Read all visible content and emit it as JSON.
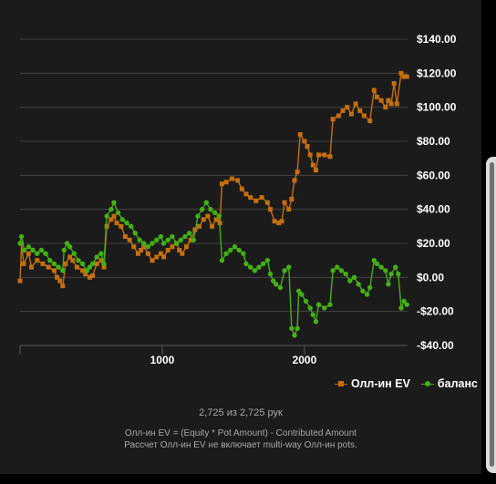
{
  "chart_data": {
    "type": "line",
    "xlim": [
      0,
      2725
    ],
    "ylim": [
      -40,
      140
    ],
    "x_ticks": [
      0,
      1000,
      2000
    ],
    "x_tick_labels": [
      "",
      "1000",
      "2000"
    ],
    "y_ticks": [
      -40,
      -20,
      0,
      20,
      40,
      60,
      80,
      100,
      120,
      140
    ],
    "y_tick_labels": [
      "-$40.00",
      "-$20.00",
      "$0.00",
      "$20.00",
      "$40.00",
      "$60.00",
      "$80.00",
      "$100.00",
      "$120.00",
      "$140.00"
    ],
    "y_axis_position": "right",
    "grid": true,
    "legend_position": "bottom-right",
    "series": [
      {
        "name": "Олл-ин EV",
        "color": "#c56f0e",
        "marker": "square",
        "points": [
          [
            0,
            -2
          ],
          [
            10,
            20
          ],
          [
            25,
            8
          ],
          [
            60,
            14
          ],
          [
            80,
            6
          ],
          [
            120,
            10
          ],
          [
            160,
            8
          ],
          [
            200,
            6
          ],
          [
            240,
            4
          ],
          [
            260,
            0
          ],
          [
            280,
            -2
          ],
          [
            300,
            -5
          ],
          [
            320,
            8
          ],
          [
            350,
            12
          ],
          [
            370,
            10
          ],
          [
            400,
            6
          ],
          [
            440,
            4
          ],
          [
            460,
            2
          ],
          [
            490,
            0
          ],
          [
            510,
            1
          ],
          [
            540,
            8
          ],
          [
            570,
            10
          ],
          [
            590,
            6
          ],
          [
            610,
            30
          ],
          [
            640,
            34
          ],
          [
            660,
            36
          ],
          [
            680,
            32
          ],
          [
            710,
            30
          ],
          [
            740,
            24
          ],
          [
            770,
            22
          ],
          [
            800,
            18
          ],
          [
            830,
            14
          ],
          [
            850,
            16
          ],
          [
            870,
            18
          ],
          [
            900,
            14
          ],
          [
            930,
            10
          ],
          [
            960,
            12
          ],
          [
            990,
            14
          ],
          [
            1010,
            12
          ],
          [
            1040,
            16
          ],
          [
            1070,
            18
          ],
          [
            1100,
            20
          ],
          [
            1120,
            16
          ],
          [
            1140,
            14
          ],
          [
            1170,
            18
          ],
          [
            1200,
            22
          ],
          [
            1230,
            28
          ],
          [
            1260,
            30
          ],
          [
            1290,
            34
          ],
          [
            1320,
            36
          ],
          [
            1350,
            30
          ],
          [
            1380,
            34
          ],
          [
            1405,
            32
          ],
          [
            1420,
            55
          ],
          [
            1450,
            56
          ],
          [
            1490,
            58
          ],
          [
            1530,
            57
          ],
          [
            1560,
            52
          ],
          [
            1590,
            49
          ],
          [
            1620,
            47
          ],
          [
            1660,
            45
          ],
          [
            1700,
            47
          ],
          [
            1740,
            44
          ],
          [
            1760,
            40
          ],
          [
            1790,
            33
          ],
          [
            1820,
            32
          ],
          [
            1840,
            33
          ],
          [
            1860,
            44
          ],
          [
            1890,
            40
          ],
          [
            1910,
            46
          ],
          [
            1930,
            57
          ],
          [
            1950,
            62
          ],
          [
            1970,
            84
          ],
          [
            2000,
            80
          ],
          [
            2020,
            77
          ],
          [
            2040,
            72
          ],
          [
            2060,
            66
          ],
          [
            2080,
            63
          ],
          [
            2100,
            72
          ],
          [
            2140,
            72
          ],
          [
            2180,
            71
          ],
          [
            2200,
            93
          ],
          [
            2240,
            95
          ],
          [
            2270,
            98
          ],
          [
            2300,
            100
          ],
          [
            2330,
            96
          ],
          [
            2360,
            102
          ],
          [
            2390,
            98
          ],
          [
            2420,
            95
          ],
          [
            2460,
            92
          ],
          [
            2490,
            110
          ],
          [
            2510,
            106
          ],
          [
            2540,
            104
          ],
          [
            2570,
            100
          ],
          [
            2590,
            104
          ],
          [
            2610,
            102
          ],
          [
            2630,
            114
          ],
          [
            2650,
            102
          ],
          [
            2680,
            120
          ],
          [
            2700,
            118
          ],
          [
            2720,
            118
          ]
        ]
      },
      {
        "name": "баланс",
        "color": "#44b015",
        "marker": "circle",
        "points": [
          [
            0,
            20
          ],
          [
            10,
            24
          ],
          [
            30,
            16
          ],
          [
            60,
            18
          ],
          [
            90,
            16
          ],
          [
            120,
            14
          ],
          [
            150,
            16
          ],
          [
            180,
            14
          ],
          [
            210,
            10
          ],
          [
            240,
            8
          ],
          [
            270,
            6
          ],
          [
            300,
            4
          ],
          [
            310,
            16
          ],
          [
            330,
            20
          ],
          [
            350,
            18
          ],
          [
            380,
            14
          ],
          [
            410,
            10
          ],
          [
            440,
            8
          ],
          [
            470,
            4
          ],
          [
            490,
            6
          ],
          [
            510,
            8
          ],
          [
            540,
            12
          ],
          [
            570,
            14
          ],
          [
            590,
            8
          ],
          [
            610,
            36
          ],
          [
            640,
            40
          ],
          [
            660,
            44
          ],
          [
            690,
            38
          ],
          [
            720,
            34
          ],
          [
            750,
            32
          ],
          [
            780,
            30
          ],
          [
            810,
            26
          ],
          [
            840,
            22
          ],
          [
            870,
            20
          ],
          [
            900,
            18
          ],
          [
            930,
            20
          ],
          [
            960,
            22
          ],
          [
            990,
            24
          ],
          [
            1010,
            20
          ],
          [
            1040,
            22
          ],
          [
            1070,
            24
          ],
          [
            1100,
            20
          ],
          [
            1130,
            22
          ],
          [
            1160,
            24
          ],
          [
            1190,
            26
          ],
          [
            1220,
            22
          ],
          [
            1250,
            36
          ],
          [
            1280,
            40
          ],
          [
            1310,
            44
          ],
          [
            1340,
            40
          ],
          [
            1370,
            38
          ],
          [
            1400,
            36
          ],
          [
            1420,
            10
          ],
          [
            1450,
            14
          ],
          [
            1480,
            16
          ],
          [
            1510,
            18
          ],
          [
            1540,
            16
          ],
          [
            1570,
            14
          ],
          [
            1590,
            8
          ],
          [
            1620,
            6
          ],
          [
            1650,
            4
          ],
          [
            1680,
            6
          ],
          [
            1710,
            8
          ],
          [
            1740,
            10
          ],
          [
            1760,
            2
          ],
          [
            1780,
            -2
          ],
          [
            1800,
            -4
          ],
          [
            1830,
            -6
          ],
          [
            1860,
            4
          ],
          [
            1890,
            6
          ],
          [
            1910,
            -30
          ],
          [
            1930,
            -34
          ],
          [
            1950,
            -30
          ],
          [
            1960,
            -8
          ],
          [
            1980,
            -10
          ],
          [
            2010,
            -14
          ],
          [
            2040,
            -18
          ],
          [
            2060,
            -22
          ],
          [
            2080,
            -26
          ],
          [
            2100,
            -16
          ],
          [
            2140,
            -18
          ],
          [
            2180,
            -16
          ],
          [
            2200,
            4
          ],
          [
            2230,
            6
          ],
          [
            2260,
            4
          ],
          [
            2290,
            2
          ],
          [
            2320,
            -2
          ],
          [
            2350,
            0
          ],
          [
            2380,
            -4
          ],
          [
            2410,
            -8
          ],
          [
            2440,
            -10
          ],
          [
            2460,
            -6
          ],
          [
            2490,
            10
          ],
          [
            2510,
            8
          ],
          [
            2540,
            6
          ],
          [
            2570,
            4
          ],
          [
            2590,
            -4
          ],
          [
            2610,
            2
          ],
          [
            2640,
            6
          ],
          [
            2660,
            2
          ],
          [
            2680,
            -18
          ],
          [
            2700,
            -14
          ],
          [
            2720,
            -16
          ]
        ]
      }
    ]
  },
  "hands_count": "2,725 из 2,725 рук",
  "footnote_line1": "Олл-ин EV = (Equity * Pot Amount) - Contributed Amount",
  "footnote_line2": "Рассчет Олл-ин EV не включает multi-way Олл-ин pots.",
  "colors": {
    "background": "#1b1b1b",
    "grid": "#4a4a4a",
    "axis_text": "#ffffff"
  }
}
